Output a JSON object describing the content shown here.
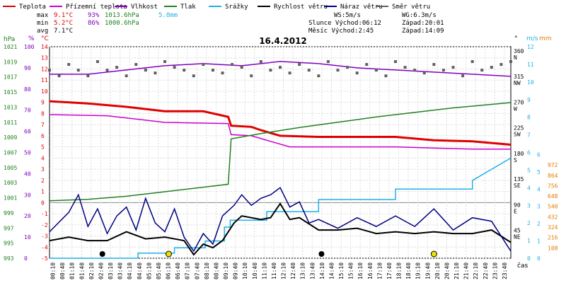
{
  "legend": [
    {
      "label": "Teplota",
      "color": "#e00000",
      "icon": "line-swatch"
    },
    {
      "label": "Přízemní teplota",
      "color": "#cc00cc",
      "icon": "line-swatch"
    },
    {
      "label": "Vlhkost",
      "color": "#8000c0",
      "icon": "line-swatch"
    },
    {
      "label": "Tlak",
      "color": "#208020",
      "icon": "line-swatch"
    },
    {
      "label": "Srážky",
      "color": "#20b0e8",
      "icon": "line-swatch"
    },
    {
      "label": "Rychlost větru",
      "color": "#000000",
      "icon": "line-swatch"
    },
    {
      "label": "Náraz větru",
      "color": "#000080",
      "icon": "line-swatch"
    },
    {
      "label": "Směr větru",
      "color": "#606060",
      "icon": "line-swatch"
    }
  ],
  "stats": {
    "max": {
      "label": "max",
      "temp": "9.1°C",
      "hum": "93%",
      "press": "1013.6hPa",
      "rain": "5.8mm"
    },
    "min": {
      "label": "min",
      "temp": "5.2°C",
      "hum": "86%",
      "press": "1000.6hPa"
    },
    "avg": {
      "label": "avg",
      "temp": "7.1°C"
    }
  },
  "wind_info": {
    "ws": "WS:5m/s",
    "wg": "WG:6.3m/s"
  },
  "sun_info": {
    "sunrise": "Slunce Východ:06:12",
    "sunset": "Západ:20:01"
  },
  "moon_info": {
    "moonrise": "Měsíc  Východ:2:45",
    "moonset": "Západ:14:09"
  },
  "date": "16.4.2012",
  "axis_titles": {
    "hpa": "hPa",
    "pct": "%",
    "degc": "°C",
    "ms": "m/s",
    "mm": "mm",
    "deg": "°",
    "cas": "čas"
  },
  "axes": {
    "pressure_ticks": [
      "1021",
      "1019",
      "1017",
      "1015",
      "1013",
      "1011",
      "1009",
      "1007",
      "1005",
      "1003",
      "1001",
      "999",
      "997",
      "995",
      "993"
    ],
    "humidity_ticks": [
      "100",
      "90",
      "80",
      "70",
      "60",
      "50",
      "40",
      "30",
      "20",
      "10",
      "0"
    ],
    "temp_ticks": [
      "14",
      "13",
      "12",
      "11",
      "10",
      "9",
      "8",
      "7",
      "6",
      "5",
      "4",
      "3",
      "2",
      "1",
      "0",
      "-1",
      "-2",
      "-3",
      "-4",
      "-5"
    ],
    "ms_ticks": [
      "12",
      "11",
      "10",
      "9",
      "8",
      "7",
      "6",
      "5",
      "4",
      "3",
      "2",
      "1",
      "0"
    ],
    "mm_ticks": [
      "6",
      "5",
      "4",
      "3",
      "2",
      "1",
      "0"
    ],
    "mm_right_ticks": [
      "972",
      "864",
      "756",
      "648",
      "540",
      "432",
      "324",
      "216",
      "108"
    ],
    "dir_ticks": [
      {
        "deg": "360",
        "dir": "N"
      },
      {
        "deg": "315",
        "dir": "NW"
      },
      {
        "deg": "270",
        "dir": "W"
      },
      {
        "deg": "225",
        "dir": "SW"
      },
      {
        "deg": "180",
        "dir": "S"
      },
      {
        "deg": "135",
        "dir": "SE"
      },
      {
        "deg": "90",
        "dir": "E"
      },
      {
        "deg": "45",
        "dir": "NE"
      }
    ],
    "time_ticks": [
      "00:10",
      "00:40",
      "01:10",
      "01:40",
      "02:10",
      "02:40",
      "03:10",
      "03:40",
      "04:10",
      "04:40",
      "05:10",
      "05:40",
      "06:10",
      "06:40",
      "07:10",
      "07:40",
      "08:10",
      "08:40",
      "09:10",
      "09:40",
      "10:10",
      "10:40",
      "11:10",
      "11:40",
      "12:10",
      "12:40",
      "13:10",
      "13:40",
      "14:10",
      "14:40",
      "15:10",
      "15:40",
      "16:10",
      "16:40",
      "17:10",
      "17:40",
      "18:10",
      "18:40",
      "19:10",
      "19:40",
      "20:10",
      "20:40",
      "21:10",
      "21:40",
      "22:10",
      "22:40",
      "23:10",
      "23:40"
    ]
  },
  "chart_data": {
    "type": "line",
    "x_range_hours": [
      0,
      24
    ],
    "grid": true,
    "temp_range_c": [
      -5,
      14
    ],
    "series": [
      {
        "name": "Teplota",
        "color": "#e00000",
        "axis": "degc",
        "points": [
          [
            0,
            9.1
          ],
          [
            2,
            8.9
          ],
          [
            4,
            8.6
          ],
          [
            6,
            8.2
          ],
          [
            8,
            8.2
          ],
          [
            9.3,
            7.7
          ],
          [
            9.45,
            6.9
          ],
          [
            10.5,
            6.8
          ],
          [
            11,
            6.5
          ],
          [
            12,
            6.0
          ],
          [
            14,
            5.9
          ],
          [
            18,
            5.9
          ],
          [
            20,
            5.6
          ],
          [
            22,
            5.5
          ],
          [
            24,
            5.2
          ]
        ]
      },
      {
        "name": "Přízemní teplota",
        "color": "#cc00cc",
        "axis": "degc",
        "points": [
          [
            0,
            7.9
          ],
          [
            3,
            7.8
          ],
          [
            4.5,
            7.5
          ],
          [
            6,
            7.2
          ],
          [
            9.3,
            7.1
          ],
          [
            9.45,
            6.1
          ],
          [
            10.5,
            6.0
          ],
          [
            11.5,
            5.5
          ],
          [
            12.5,
            5.0
          ],
          [
            14,
            5.0
          ],
          [
            18,
            5.0
          ],
          [
            20,
            4.9
          ],
          [
            22,
            4.8
          ],
          [
            24,
            4.8
          ]
        ]
      },
      {
        "name": "Vlhkost",
        "color": "#8000c0",
        "axis": "pct",
        "points": [
          [
            0,
            87
          ],
          [
            2,
            87
          ],
          [
            4,
            89
          ],
          [
            6,
            91
          ],
          [
            8,
            92
          ],
          [
            10,
            91
          ],
          [
            12,
            93
          ],
          [
            14,
            92
          ],
          [
            16,
            90
          ],
          [
            18,
            89
          ],
          [
            20,
            88
          ],
          [
            22,
            87
          ],
          [
            24,
            86
          ]
        ]
      },
      {
        "name": "Tlak",
        "color": "#208020",
        "axis": "hpa",
        "points": [
          [
            0,
            1000.6
          ],
          [
            2,
            1000.8
          ],
          [
            4,
            1001.2
          ],
          [
            6,
            1001.8
          ],
          [
            8,
            1002.4
          ],
          [
            9.3,
            1002.8
          ],
          [
            9.45,
            1008.8
          ],
          [
            11,
            1009.5
          ],
          [
            13,
            1010.3
          ],
          [
            15,
            1011.0
          ],
          [
            17,
            1011.7
          ],
          [
            19,
            1012.3
          ],
          [
            21,
            1012.9
          ],
          [
            24,
            1013.6
          ]
        ]
      },
      {
        "name": "Srážky",
        "color": "#20b0e8",
        "axis": "mm",
        "points": [
          [
            0,
            0
          ],
          [
            4.6,
            0
          ],
          [
            4.6,
            0.3
          ],
          [
            6.5,
            0.3
          ],
          [
            6.5,
            0.6
          ],
          [
            8.1,
            0.6
          ],
          [
            8.1,
            1.0
          ],
          [
            9.1,
            1.0
          ],
          [
            9.1,
            1.8
          ],
          [
            9.4,
            1.8
          ],
          [
            9.4,
            2.2
          ],
          [
            11.3,
            2.2
          ],
          [
            11.3,
            2.7
          ],
          [
            14,
            2.7
          ],
          [
            14,
            3.4
          ],
          [
            18,
            3.4
          ],
          [
            18,
            4.0
          ],
          [
            22,
            4.0
          ],
          [
            22,
            4.5
          ],
          [
            24,
            5.8
          ]
        ]
      },
      {
        "name": "Rychlost větru",
        "color": "#000000",
        "axis": "ms",
        "points": [
          [
            0,
            1.0
          ],
          [
            1,
            1.2
          ],
          [
            2,
            1.0
          ],
          [
            3,
            1.0
          ],
          [
            4,
            1.5
          ],
          [
            5,
            1.1
          ],
          [
            6,
            1.2
          ],
          [
            7,
            1.0
          ],
          [
            7.5,
            0.2
          ],
          [
            8,
            0.8
          ],
          [
            8.5,
            0.6
          ],
          [
            9,
            1.0
          ],
          [
            9.6,
            2.0
          ],
          [
            10,
            2.4
          ],
          [
            11,
            2.2
          ],
          [
            11.5,
            2.3
          ],
          [
            12,
            3.1
          ],
          [
            12.5,
            2.2
          ],
          [
            13,
            2.3
          ],
          [
            14,
            1.6
          ],
          [
            15,
            1.6
          ],
          [
            16,
            1.7
          ],
          [
            17,
            1.4
          ],
          [
            18,
            1.5
          ],
          [
            19,
            1.4
          ],
          [
            20,
            1.5
          ],
          [
            21,
            1.4
          ],
          [
            22,
            1.4
          ],
          [
            23,
            1.6
          ],
          [
            24,
            0.9
          ]
        ]
      },
      {
        "name": "Náraz větru",
        "color": "#000080",
        "axis": "ms",
        "points": [
          [
            0,
            1.5
          ],
          [
            1,
            2.6
          ],
          [
            1.5,
            3.6
          ],
          [
            2,
            1.8
          ],
          [
            2.5,
            2.8
          ],
          [
            3,
            1.4
          ],
          [
            3.5,
            2.4
          ],
          [
            4,
            2.9
          ],
          [
            4.5,
            1.6
          ],
          [
            5,
            3.4
          ],
          [
            5.5,
            2.0
          ],
          [
            6,
            1.5
          ],
          [
            6.5,
            2.8
          ],
          [
            7,
            1.2
          ],
          [
            7.5,
            0.4
          ],
          [
            8,
            1.4
          ],
          [
            8.5,
            0.8
          ],
          [
            9,
            2.4
          ],
          [
            9.6,
            3.0
          ],
          [
            10,
            3.6
          ],
          [
            10.5,
            3.0
          ],
          [
            11,
            3.4
          ],
          [
            11.5,
            3.6
          ],
          [
            12,
            4.0
          ],
          [
            12.5,
            2.9
          ],
          [
            13,
            3.2
          ],
          [
            13.5,
            2.0
          ],
          [
            14,
            2.2
          ],
          [
            15,
            1.7
          ],
          [
            16,
            2.3
          ],
          [
            17,
            1.8
          ],
          [
            18,
            2.4
          ],
          [
            19,
            1.8
          ],
          [
            20,
            2.8
          ],
          [
            21,
            1.6
          ],
          [
            22,
            2.3
          ],
          [
            23,
            2.1
          ],
          [
            24,
            0.4
          ]
        ]
      },
      {
        "name": "Směr větru",
        "color": "#606060",
        "axis": "deg",
        "style": "dots",
        "points": [
          [
            0,
            330
          ],
          [
            0.5,
            320
          ],
          [
            1,
            340
          ],
          [
            1.5,
            330
          ],
          [
            2,
            320
          ],
          [
            2.5,
            345
          ],
          [
            3,
            330
          ],
          [
            3.5,
            335
          ],
          [
            4,
            320
          ],
          [
            4.5,
            340
          ],
          [
            5,
            330
          ],
          [
            5.5,
            325
          ],
          [
            6,
            345
          ],
          [
            6.5,
            335
          ],
          [
            7,
            330
          ],
          [
            7.5,
            320
          ],
          [
            8,
            340
          ],
          [
            8.5,
            330
          ],
          [
            9,
            325
          ],
          [
            9.5,
            340
          ],
          [
            10,
            335
          ],
          [
            10.5,
            320
          ],
          [
            11,
            345
          ],
          [
            11.5,
            330
          ],
          [
            12,
            335
          ],
          [
            12.5,
            325
          ],
          [
            13,
            340
          ],
          [
            13.5,
            330
          ],
          [
            14,
            320
          ],
          [
            14.5,
            345
          ],
          [
            15,
            330
          ],
          [
            15.5,
            335
          ],
          [
            16,
            325
          ],
          [
            16.5,
            340
          ],
          [
            17,
            330
          ],
          [
            17.5,
            320
          ],
          [
            18,
            345
          ],
          [
            18.5,
            335
          ],
          [
            19,
            330
          ],
          [
            19.5,
            325
          ],
          [
            20,
            340
          ],
          [
            20.5,
            330
          ],
          [
            21,
            335
          ],
          [
            21.5,
            320
          ],
          [
            22,
            345
          ],
          [
            22.5,
            330
          ],
          [
            23,
            335
          ],
          [
            23.5,
            340
          ],
          [
            24,
            345
          ]
        ]
      }
    ],
    "events": [
      {
        "label": "moonrise",
        "time_h": 2.75,
        "icon": "moonrise-icon"
      },
      {
        "label": "sunrise",
        "time_h": 6.2,
        "icon": "sunrise-icon"
      },
      {
        "label": "sunset",
        "time_h": 20.0,
        "icon": "sunset-icon"
      },
      {
        "label": "moonset",
        "time_h": 14.15,
        "icon": "moonset-icon"
      }
    ]
  }
}
